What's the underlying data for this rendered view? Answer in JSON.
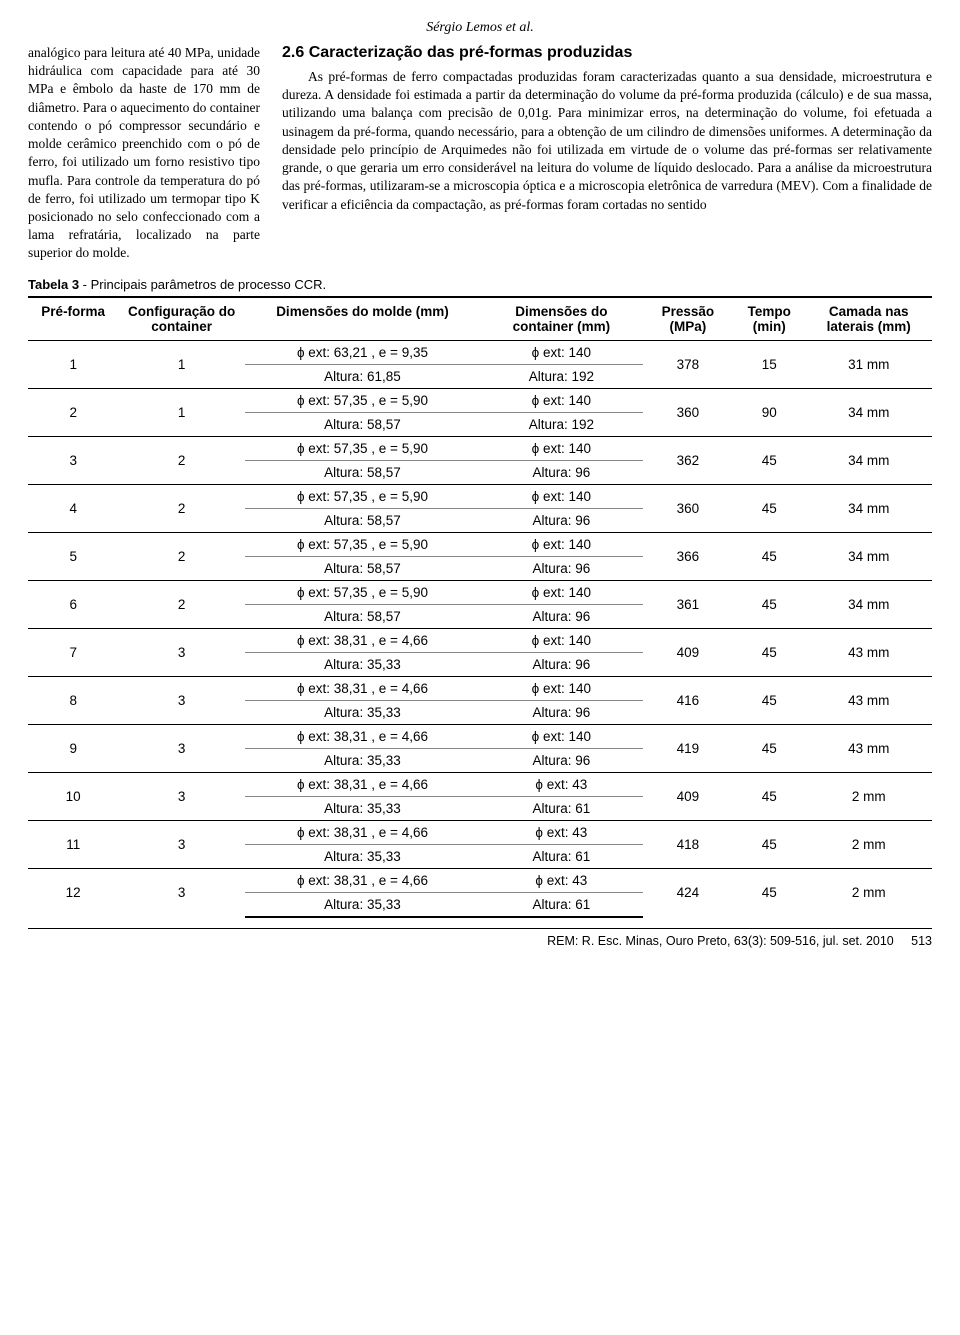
{
  "header": {
    "author_line": "Sérgio Lemos et al."
  },
  "left_paragraph": "analógico para leitura até 40 MPa, unidade hidráulica com capacidade para até 30 MPa e êmbolo da haste de 170 mm de diâmetro. Para o aquecimento do container contendo o pó compressor secundário e molde cerâmico preenchido com o pó de ferro, foi utilizado um forno resistivo tipo mufla. Para controle da temperatura do pó de ferro, foi utilizado um termopar tipo K posicionado no selo confeccionado com a lama refratária, localizado na parte superior do molde.",
  "section_heading": "2.6 Caracterização das pré-formas produzidas",
  "right_paragraph": "As pré-formas de ferro compactadas produzidas foram caracterizadas quanto a sua densidade, microestrutura e dureza. A densidade foi estimada a partir da determinação do volume da pré-forma produzida (cálculo) e de sua massa, utilizando uma balança com precisão de 0,01g. Para minimizar erros, na determinação do volume, foi efetuada a usinagem da pré-forma, quando necessário, para a obtenção de um cilindro de dimensões uniformes. A determinação da densidade pelo princípio de Arquimedes não foi utilizada em virtude de o volume das pré-formas ser relativamente grande, o que geraria um erro considerável na leitura do volume de líquido deslocado. Para a análise da microestrutura das pré-formas, utilizaram-se a microscopia óptica e a microscopia eletrônica de varredura (MEV). Com a finalidade de verificar a eficiência da compactação, as pré-formas foram cortadas no sentido",
  "table": {
    "caption_bold": "Tabela 3",
    "caption_rest": " - Principais parâmetros de processo CCR.",
    "headers": {
      "c1": "Pré-forma",
      "c2": "Configuração do container",
      "c3": "Dimensões do molde (mm)",
      "c4": "Dimensões do container (mm)",
      "c5": "Pressão (MPa)",
      "c6": "Tempo (min)",
      "c7": "Camada nas laterais (mm)"
    },
    "rows": [
      {
        "pf": "1",
        "cfg": "1",
        "m1": "ϕ ext: 63,21 , e = 9,35",
        "m2": "Altura: 61,85",
        "ct1": "ϕ ext: 140",
        "ct2": "Altura: 192",
        "p": "378",
        "t": "15",
        "cam": "31 mm"
      },
      {
        "pf": "2",
        "cfg": "1",
        "m1": "ϕ ext: 57,35 , e = 5,90",
        "m2": "Altura: 58,57",
        "ct1": "ϕ ext: 140",
        "ct2": "Altura: 192",
        "p": "360",
        "t": "90",
        "cam": "34 mm"
      },
      {
        "pf": "3",
        "cfg": "2",
        "m1": "ϕ ext: 57,35 , e = 5,90",
        "m2": "Altura: 58,57",
        "ct1": "ϕ ext: 140",
        "ct2": "Altura: 96",
        "p": "362",
        "t": "45",
        "cam": "34 mm"
      },
      {
        "pf": "4",
        "cfg": "2",
        "m1": "ϕ ext: 57,35 , e = 5,90",
        "m2": "Altura: 58,57",
        "ct1": "ϕ ext: 140",
        "ct2": "Altura: 96",
        "p": "360",
        "t": "45",
        "cam": "34 mm"
      },
      {
        "pf": "5",
        "cfg": "2",
        "m1": "ϕ ext: 57,35 , e = 5,90",
        "m2": "Altura: 58,57",
        "ct1": "ϕ ext: 140",
        "ct2": "Altura: 96",
        "p": "366",
        "t": "45",
        "cam": "34 mm"
      },
      {
        "pf": "6",
        "cfg": "2",
        "m1": "ϕ ext: 57,35 , e = 5,90",
        "m2": "Altura: 58,57",
        "ct1": "ϕ ext: 140",
        "ct2": "Altura: 96",
        "p": "361",
        "t": "45",
        "cam": "34 mm"
      },
      {
        "pf": "7",
        "cfg": "3",
        "m1": "ϕ ext: 38,31 , e = 4,66",
        "m2": "Altura: 35,33",
        "ct1": "ϕ ext: 140",
        "ct2": "Altura: 96",
        "p": "409",
        "t": "45",
        "cam": "43 mm"
      },
      {
        "pf": "8",
        "cfg": "3",
        "m1": "ϕ ext: 38,31 , e = 4,66",
        "m2": "Altura: 35,33",
        "ct1": "ϕ ext: 140",
        "ct2": "Altura: 96",
        "p": "416",
        "t": "45",
        "cam": "43 mm"
      },
      {
        "pf": "9",
        "cfg": "3",
        "m1": "ϕ ext: 38,31 , e = 4,66",
        "m2": "Altura: 35,33",
        "ct1": "ϕ ext: 140",
        "ct2": "Altura: 96",
        "p": "419",
        "t": "45",
        "cam": "43 mm"
      },
      {
        "pf": "10",
        "cfg": "3",
        "m1": "ϕ ext: 38,31 , e = 4,66",
        "m2": "Altura: 35,33",
        "ct1": "ϕ ext: 43",
        "ct2": "Altura: 61",
        "p": "409",
        "t": "45",
        "cam": "2 mm"
      },
      {
        "pf": "11",
        "cfg": "3",
        "m1": "ϕ ext: 38,31 , e = 4,66",
        "m2": "Altura: 35,33",
        "ct1": "ϕ ext: 43",
        "ct2": "Altura: 61",
        "p": "418",
        "t": "45",
        "cam": "2 mm"
      },
      {
        "pf": "12",
        "cfg": "3",
        "m1": "ϕ ext: 38,31 , e = 4,66",
        "m2": "Altura: 35,33",
        "ct1": "ϕ ext: 43",
        "ct2": "Altura: 61",
        "p": "424",
        "t": "45",
        "cam": "2 mm"
      }
    ],
    "col_widths_pct": [
      10,
      14,
      26,
      18,
      10,
      8,
      14
    ]
  },
  "footer": {
    "text": "REM: R. Esc. Minas, Ouro Preto, 63(3): 509-516, jul. set. 2010",
    "page": "513"
  },
  "styling": {
    "font_body": "Georgia/Times",
    "font_sans": "Arial/Helvetica",
    "text_color": "#000000",
    "background": "#ffffff",
    "rule_color": "#000000",
    "inner_rule_color": "#888888"
  }
}
